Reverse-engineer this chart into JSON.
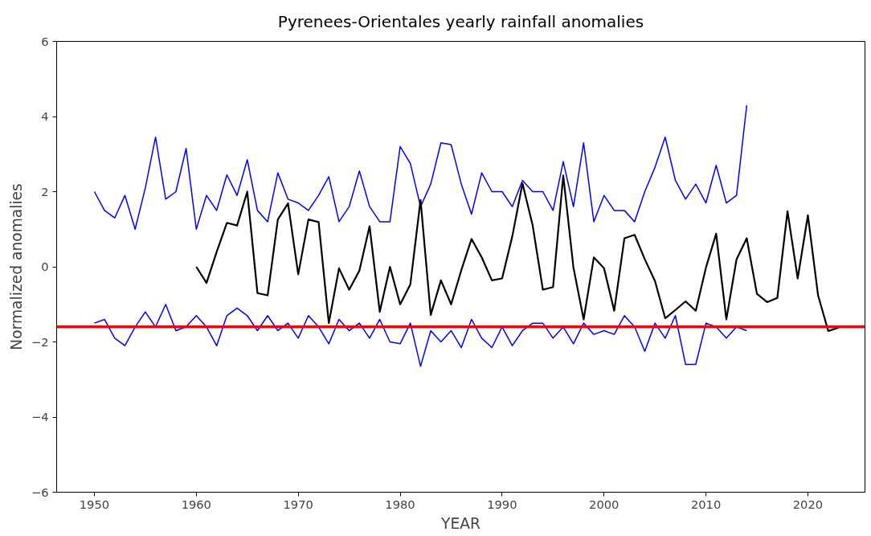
{
  "chart_data": {
    "type": "line",
    "title": "Pyrenees-Orientales yearly rainfall anomalies",
    "xlabel": "YEAR",
    "ylabel": "Normalized anomalies",
    "xlim": [
      1946.3,
      2025.6
    ],
    "ylim": [
      -6,
      6
    ],
    "xticks": [
      1950,
      1960,
      1970,
      1980,
      1990,
      2000,
      2010,
      2020
    ],
    "yticks": [
      -6,
      -4,
      -2,
      0,
      2,
      4,
      6
    ],
    "grid": false,
    "line_style": "solid",
    "marker": "none",
    "series": [
      {
        "color": "#0000ff",
        "x": [
          1950,
          1951,
          1952,
          1953,
          1954,
          1955,
          1956,
          1957,
          1958,
          1959,
          1960,
          1961,
          1962,
          1963,
          1964,
          1965,
          1966,
          1967,
          1968,
          1969,
          1970,
          1971,
          1972,
          1973,
          1974,
          1975,
          1976,
          1977,
          1978,
          1979,
          1980,
          1981,
          1982,
          1983,
          1984,
          1985,
          1986,
          1987,
          1988,
          1989,
          1990,
          1991,
          1992,
          1993,
          1994,
          1995,
          1996,
          1997,
          1998,
          1999,
          2000,
          2001,
          2002,
          2003,
          2004,
          2005,
          2006,
          2007,
          2008,
          2009,
          2010,
          2011,
          2012,
          2013,
          2014
        ],
        "values": [
          2.0,
          1.5,
          1.3,
          1.9,
          1.0,
          2.1,
          3.45,
          1.8,
          2.0,
          3.15,
          1.0,
          1.9,
          1.5,
          2.45,
          1.9,
          2.85,
          1.5,
          1.2,
          2.5,
          1.8,
          1.7,
          1.5,
          1.9,
          2.4,
          1.2,
          1.6,
          2.55,
          1.6,
          1.2,
          1.2,
          3.2,
          2.75,
          1.6,
          2.2,
          3.3,
          3.25,
          2.2,
          1.4,
          2.5,
          2.0,
          2.0,
          1.6,
          2.3,
          2.0,
          2.0,
          1.5,
          2.8,
          1.6,
          3.3,
          1.2,
          1.9,
          1.5,
          1.5,
          1.2,
          2.0,
          2.65,
          3.45,
          2.3,
          1.8,
          2.2,
          1.7,
          2.7,
          1.7,
          1.9,
          4.3
        ]
      },
      {
        "color": "#0000ff",
        "x": [
          1950,
          1951,
          1952,
          1953,
          1954,
          1955,
          1956,
          1957,
          1958,
          1959,
          1960,
          1961,
          1962,
          1963,
          1964,
          1965,
          1966,
          1967,
          1968,
          1969,
          1970,
          1971,
          1972,
          1973,
          1974,
          1975,
          1976,
          1977,
          1978,
          1979,
          1980,
          1981,
          1982,
          1983,
          1984,
          1985,
          1986,
          1987,
          1988,
          1989,
          1990,
          1991,
          1992,
          1993,
          1994,
          1995,
          1996,
          1997,
          1998,
          1999,
          2000,
          2001,
          2002,
          2003,
          2004,
          2005,
          2006,
          2007,
          2008,
          2009,
          2010,
          2011,
          2012,
          2013,
          2014
        ],
        "values": [
          -1.5,
          -1.4,
          -1.9,
          -2.1,
          -1.6,
          -1.2,
          -1.6,
          -1.0,
          -1.7,
          -1.6,
          -1.3,
          -1.6,
          -2.1,
          -1.3,
          -1.1,
          -1.3,
          -1.7,
          -1.3,
          -1.7,
          -1.5,
          -1.9,
          -1.3,
          -1.6,
          -2.05,
          -1.4,
          -1.7,
          -1.5,
          -1.9,
          -1.4,
          -2.0,
          -2.05,
          -1.5,
          -2.65,
          -1.7,
          -2.0,
          -1.7,
          -2.15,
          -1.4,
          -1.9,
          -2.15,
          -1.6,
          -2.1,
          -1.7,
          -1.5,
          -1.5,
          -1.9,
          -1.6,
          -2.05,
          -1.5,
          -1.8,
          -1.7,
          -1.8,
          -1.3,
          -1.6,
          -2.25,
          -1.5,
          -1.9,
          -1.3,
          -2.6,
          -2.6,
          -1.5,
          -1.6,
          -1.9,
          -1.6,
          -1.7
        ]
      },
      {
        "color": "#000000",
        "x": [
          1960,
          1961,
          1962,
          1963,
          1964,
          1965,
          1966,
          1967,
          1968,
          1969,
          1970,
          1971,
          1972,
          1973,
          1974,
          1975,
          1976,
          1977,
          1978,
          1979,
          1980,
          1981,
          1982,
          1983,
          1984,
          1985,
          1986,
          1987,
          1988,
          1989,
          1990,
          1991,
          1992,
          1993,
          1994,
          1995,
          1996,
          1997,
          1998,
          1999,
          2000,
          2001,
          2002,
          2003,
          2004,
          2005,
          2006,
          2007,
          2008,
          2009,
          2010,
          2011,
          2012,
          2013,
          2014,
          2015,
          2016,
          2017,
          2018,
          2019,
          2020,
          2021,
          2022,
          2023
        ],
        "values": [
          0.0,
          -0.43,
          0.4,
          1.17,
          1.1,
          2.0,
          -0.7,
          -0.76,
          1.26,
          1.69,
          -0.2,
          1.26,
          1.19,
          -1.5,
          -0.04,
          -0.61,
          -0.1,
          1.08,
          -1.2,
          0.0,
          -1.0,
          -0.47,
          1.78,
          -1.28,
          -0.36,
          -1.0,
          -0.09,
          0.74,
          0.25,
          -0.36,
          -0.31,
          0.81,
          2.22,
          1.1,
          -0.61,
          -0.54,
          2.43,
          -0.02,
          -1.4,
          0.25,
          -0.04,
          -1.17,
          0.76,
          0.85,
          0.2,
          -0.38,
          -1.37,
          -1.15,
          -0.92,
          -1.17,
          -0.02,
          0.88,
          -1.4,
          0.2,
          0.76,
          -0.72,
          -0.94,
          -0.83,
          1.48,
          -0.31,
          1.37,
          -0.76,
          -1.71,
          -1.62
        ]
      }
    ],
    "ref_lines": [
      {
        "axis": "y",
        "value": -1.6,
        "color": "#ff0000",
        "line_style": "solid"
      }
    ]
  }
}
